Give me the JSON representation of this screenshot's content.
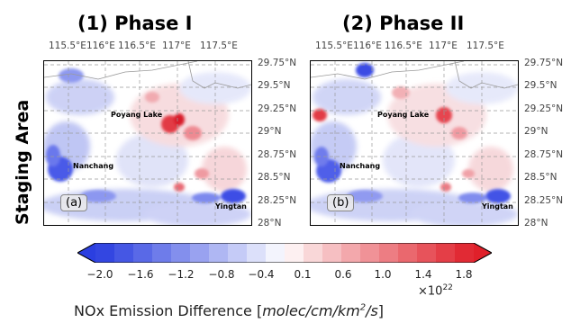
{
  "panels": [
    {
      "title": "(1) Phase I",
      "tag": "(a)",
      "places": {
        "lake": "Poyang Lake",
        "city1": "Nanchang",
        "city2": "Yingtan"
      }
    },
    {
      "title": "(2) Phase II",
      "tag": "(b)",
      "places": {
        "lake": "Poyang Lake",
        "city1": "Nanchang",
        "city2": "Yingtan"
      }
    }
  ],
  "row_label": "Staging Area",
  "lon_ticks": [
    "115.5°E",
    "116°E",
    "116.5°E",
    "117°E",
    "117.5°E"
  ],
  "lat_ticks": [
    "29.75°N",
    "29.5°N",
    "29.25°N",
    "29°N",
    "28.75°N",
    "28.5°N",
    "28.25°N",
    "28°N"
  ],
  "colorbar": {
    "ticks": [
      "−2.0",
      "−1.6",
      "−1.2",
      "−0.8",
      "−0.4",
      "0.1",
      "0.6",
      "1.0",
      "1.4",
      "1.8"
    ],
    "exponent": "×10",
    "exponent_power": "22",
    "label_prefix": "NOx Emission Difference [",
    "label_units": "molec/cm/km",
    "label_power": "2",
    "label_suffix_italic": "/s",
    "label_suffix": "]",
    "colors": {
      "negative": "#2b3fe0",
      "neutral": "#ffffff",
      "positive": "#e0202a"
    }
  }
}
